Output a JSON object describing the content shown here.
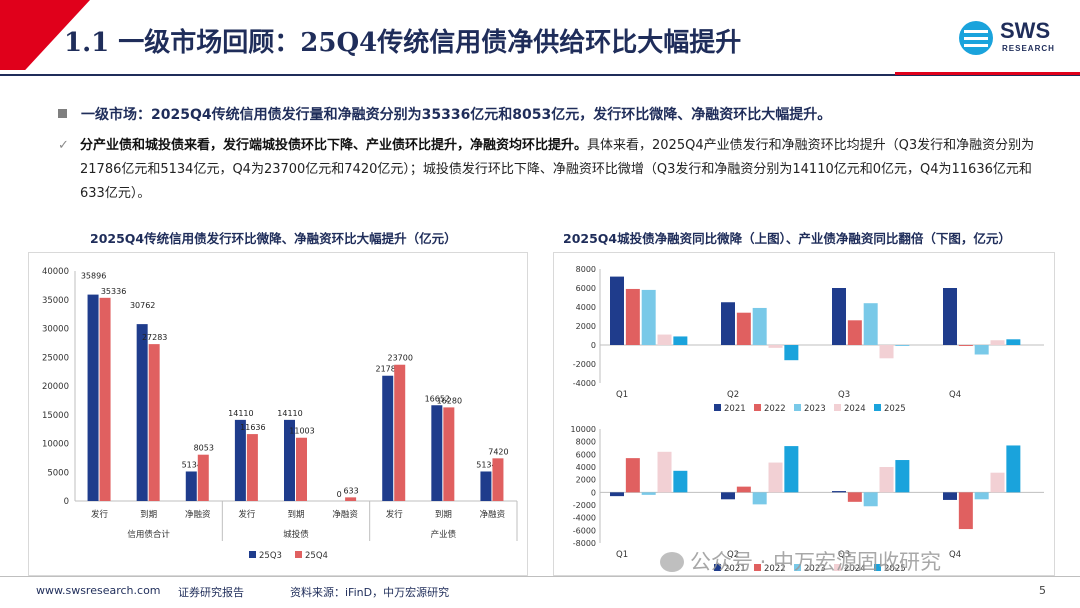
{
  "header": {
    "title": "1.1 一级市场回顾：25Q4传统信用债净供给环比大幅提升",
    "logo_text": "SWS",
    "logo_sub": "RESEARCH"
  },
  "bullet": "一级市场：2025Q4传统信用债发行量和净融资分别为35336亿元和8053亿元，发行环比微降、净融资环比大幅提升。",
  "paragraph": {
    "bold": "分产业债和城投债来看，发行端城投债环比下降、产业债环比提升，净融资均环比提升。",
    "rest": "具体来看，2025Q4产业债发行和净融资环比均提升（Q3发行和净融资分别为21786亿元和5134亿元，Q4为23700亿元和7420亿元）；城投债发行环比下降、净融资环比微增（Q3发行和净融资分别为14110亿元和0亿元，Q4为11636亿元和633亿元）。"
  },
  "chart_titles": {
    "left": "2025Q4传统信用债发行环比微降、净融资环比大幅提升（亿元）",
    "right": "2025Q4城投债净融资同比微降（上图）、产业债净融资同比翻倍（下图，亿元）"
  },
  "colors": {
    "s2021": "#1f3c8c",
    "s2022": "#e06060",
    "s2023": "#79c9e8",
    "s2024": "#f2d0d4",
    "s2025": "#1aa3dc",
    "q3": "#1f3c8c",
    "q4": "#e06060"
  },
  "chart_data": [
    {
      "type": "bar",
      "title": "2025Q4传统信用债发行环比微降、净融资环比大幅提升（亿元）",
      "ylim": [
        0,
        40000
      ],
      "yticks": [
        0,
        5000,
        10000,
        15000,
        20000,
        25000,
        30000,
        35000,
        40000
      ],
      "groups": [
        "信用债合计",
        "城投债",
        "产业债"
      ],
      "categories": [
        "发行",
        "到期",
        "净融资",
        "发行",
        "到期",
        "净融资",
        "发行",
        "到期",
        "净融资"
      ],
      "series": [
        {
          "name": "25Q3",
          "values": [
            35896,
            30762,
            5134,
            14110,
            14110,
            0,
            21786,
            16652,
            5134
          ]
        },
        {
          "name": "25Q4",
          "values": [
            35336,
            27283,
            8053,
            11636,
            11003,
            633,
            23700,
            16280,
            7420
          ]
        }
      ]
    },
    {
      "type": "bar",
      "title": "城投债净融资（上图）",
      "ylim": [
        -4000,
        8000
      ],
      "yticks": [
        -4000,
        -2000,
        0,
        2000,
        4000,
        6000,
        8000
      ],
      "categories": [
        "Q1",
        "Q2",
        "Q3",
        "Q4"
      ],
      "series": [
        {
          "name": "2021",
          "values": [
            7200,
            4500,
            6000,
            6000
          ]
        },
        {
          "name": "2022",
          "values": [
            5900,
            3400,
            2600,
            -100
          ]
        },
        {
          "name": "2023",
          "values": [
            5800,
            3900,
            4400,
            -1000
          ]
        },
        {
          "name": "2024",
          "values": [
            1100,
            -300,
            -1400,
            500
          ]
        },
        {
          "name": "2025",
          "values": [
            900,
            -1600,
            0,
            600
          ]
        }
      ]
    },
    {
      "type": "bar",
      "title": "产业债净融资（下图）",
      "ylim": [
        -8000,
        10000
      ],
      "yticks": [
        -8000,
        -6000,
        -4000,
        -2000,
        0,
        2000,
        4000,
        6000,
        8000,
        10000
      ],
      "categories": [
        "Q1",
        "Q2",
        "Q3",
        "Q4"
      ],
      "series": [
        {
          "name": "2021",
          "values": [
            -600,
            -1100,
            200,
            -1200
          ]
        },
        {
          "name": "2022",
          "values": [
            5400,
            900,
            -1500,
            -5800
          ]
        },
        {
          "name": "2023",
          "values": [
            -400,
            -1900,
            -2200,
            -1100
          ]
        },
        {
          "name": "2024",
          "values": [
            6400,
            4700,
            4000,
            3100
          ]
        },
        {
          "name": "2025",
          "values": [
            3400,
            7300,
            5100,
            7400
          ]
        }
      ]
    }
  ],
  "footer": {
    "website": "www.swsresearch.com",
    "report": "证券研究报告",
    "source": "资料来源：iFinD，中万宏源研究",
    "page": "5"
  },
  "watermark": "公众号 · 中万宏源固收研究"
}
